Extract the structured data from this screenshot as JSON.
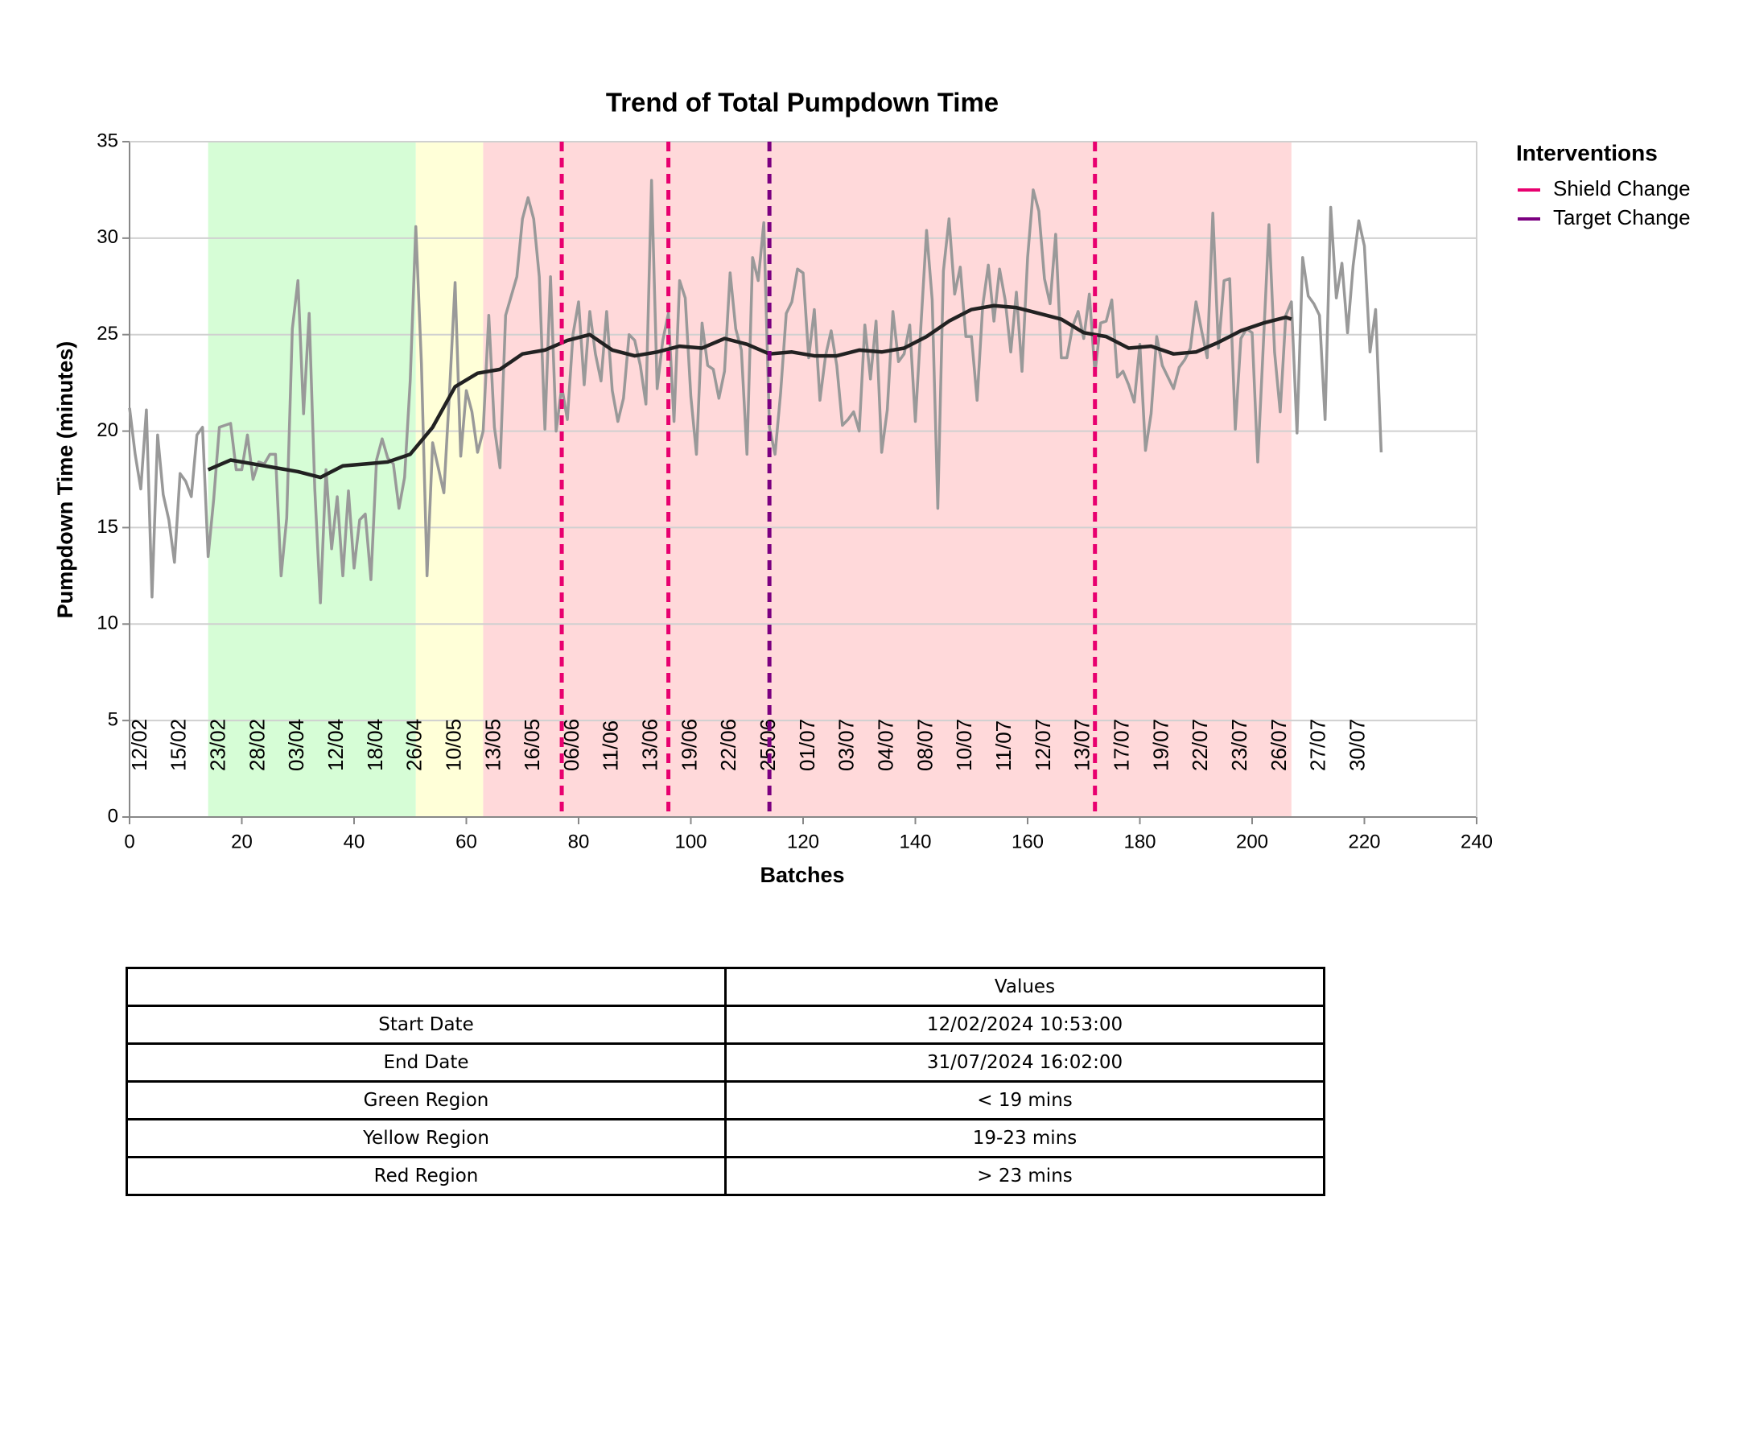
{
  "chart_data": {
    "type": "line",
    "title": "Trend of Total Pumpdown Time",
    "x_label": "Batches",
    "y_label": "Pumpdown Time (minutes)",
    "xlim": [
      0,
      240
    ],
    "xticks": [
      0,
      20,
      40,
      60,
      80,
      100,
      120,
      140,
      160,
      180,
      200,
      220,
      240
    ],
    "ylim": [
      0,
      35
    ],
    "yticks": [
      0,
      5,
      10,
      15,
      20,
      25,
      30,
      35
    ],
    "grid": true,
    "regions": [
      {
        "from": 14,
        "to": 51,
        "color": "#d6fdd6"
      },
      {
        "from": 51,
        "to": 63,
        "color": "#ffffd8"
      },
      {
        "from": 63,
        "to": 207,
        "color": "#ffd9da"
      }
    ],
    "series": [
      {
        "color": "#999999",
        "x": [
          0,
          1,
          2,
          3,
          4,
          5,
          6,
          7,
          8,
          9,
          10,
          11,
          12,
          13,
          14,
          15,
          16,
          17,
          18,
          19,
          20,
          21,
          22,
          23,
          24,
          25,
          26,
          27,
          28,
          29,
          30,
          31,
          32,
          33,
          34,
          35,
          36,
          37,
          38,
          39,
          40,
          41,
          42,
          43,
          44,
          45,
          46,
          47,
          48,
          49,
          50,
          51,
          52,
          53,
          54,
          55,
          56,
          57,
          58,
          59,
          60,
          61,
          62,
          63,
          64,
          65,
          66,
          67,
          68,
          69,
          70,
          71,
          72,
          73,
          74,
          75,
          76,
          77,
          78,
          79,
          80,
          81,
          82,
          83,
          84,
          85,
          86,
          87,
          88,
          89,
          90,
          91,
          92,
          93,
          94,
          95,
          96,
          97,
          98,
          99,
          100,
          101,
          102,
          103,
          104,
          105,
          106,
          107,
          108,
          109,
          110,
          111,
          112,
          113,
          114,
          115,
          116,
          117,
          118,
          119,
          120,
          121,
          122,
          123,
          124,
          125,
          126,
          127,
          128,
          129,
          130,
          131,
          132,
          133,
          134,
          135,
          136,
          137,
          138,
          139,
          140,
          141,
          142,
          143,
          144,
          145,
          146,
          147,
          148,
          149,
          150,
          151,
          152,
          153,
          154,
          155,
          156,
          157,
          158,
          159,
          160,
          161,
          162,
          163,
          164,
          165,
          166,
          167,
          168,
          169,
          170,
          171,
          172,
          173,
          174,
          175,
          176,
          177,
          178,
          179,
          180,
          181,
          182,
          183,
          184,
          185,
          186,
          187,
          188,
          189,
          190,
          191,
          192,
          193,
          194,
          195,
          196,
          197,
          198,
          199,
          200,
          201,
          202,
          203,
          204,
          205,
          206,
          207,
          208,
          209,
          210,
          211,
          212,
          213,
          214,
          215,
          216,
          217,
          218,
          219,
          220,
          221,
          222,
          223
        ],
        "values": [
          21.2,
          18.8,
          17.0,
          21.1,
          11.4,
          19.8,
          16.7,
          15.4,
          13.2,
          17.8,
          17.4,
          16.6,
          19.8,
          20.2,
          13.5,
          16.5,
          20.2,
          20.3,
          20.4,
          18.0,
          18.0,
          19.8,
          17.5,
          18.4,
          18.3,
          18.8,
          18.8,
          12.5,
          15.5,
          25.3,
          27.8,
          20.9,
          26.1,
          17.0,
          11.1,
          18.0,
          13.9,
          16.6,
          12.5,
          16.9,
          12.9,
          15.4,
          15.7,
          12.3,
          18.5,
          19.6,
          18.6,
          18.3,
          16.0,
          17.6,
          22.6,
          30.6,
          23.5,
          12.5,
          19.4,
          18.1,
          16.8,
          22.0,
          27.7,
          18.7,
          22.1,
          21.0,
          18.9,
          20.0,
          26.0,
          20.2,
          18.1,
          26.0,
          27.0,
          28.0,
          31.0,
          32.1,
          31.0,
          28.0,
          20.1,
          28.0,
          20.0,
          22.3,
          20.6,
          25.0,
          26.7,
          22.4,
          26.2,
          24.0,
          22.6,
          26.2,
          22.1,
          20.5,
          21.7,
          25.0,
          24.7,
          23.4,
          21.4,
          33.0,
          22.2,
          24.7,
          26.1,
          20.5,
          27.8,
          26.9,
          21.8,
          18.8,
          25.6,
          23.4,
          23.2,
          21.7,
          23.1,
          28.2,
          25.3,
          24.2,
          18.8,
          29.0,
          27.8,
          30.8,
          20.2,
          18.8,
          22.0,
          26.1,
          26.7,
          28.4,
          28.2,
          23.8,
          26.3,
          21.6,
          23.9,
          25.2,
          23.4,
          20.3,
          20.6,
          21.0,
          20.0,
          25.5,
          22.7,
          25.7,
          18.9,
          21.1,
          26.2,
          23.6,
          24.0,
          25.5,
          20.5,
          25.5,
          30.4,
          26.8,
          16.0,
          28.3,
          31.0,
          27.1,
          28.5,
          24.9,
          24.9,
          21.6,
          26.5,
          28.6,
          25.7,
          28.4,
          26.8,
          24.1,
          27.2,
          23.1,
          29.0,
          32.5,
          31.4,
          27.9,
          26.6,
          30.2,
          23.8,
          23.8,
          25.4,
          26.2,
          24.8,
          27.1,
          23.0,
          25.6,
          25.7,
          26.8,
          22.8,
          23.1,
          22.4,
          21.5,
          24.5,
          19.0,
          20.9,
          24.9,
          23.4,
          22.8,
          22.2,
          23.3,
          23.7,
          24.3,
          26.7,
          25.2,
          23.8,
          31.3,
          24.3,
          27.8,
          27.9,
          20.1,
          24.8,
          25.3,
          25.1,
          18.4,
          24.5,
          30.7,
          24.1,
          21.0,
          26.0,
          26.7,
          19.9,
          29.0,
          27.0,
          26.6,
          26.0,
          20.6,
          31.6,
          26.9,
          28.7,
          25.1,
          28.6,
          30.9,
          29.6,
          24.1,
          26.3,
          18.9
        ]
      },
      {
        "color": "#222222",
        "x": [
          14,
          18,
          22,
          26,
          30,
          34,
          38,
          42,
          46,
          50,
          54,
          58,
          62,
          66,
          70,
          74,
          78,
          82,
          86,
          90,
          94,
          98,
          102,
          106,
          110,
          114,
          118,
          122,
          126,
          130,
          134,
          138,
          142,
          146,
          150,
          154,
          158,
          162,
          166,
          170,
          174,
          178,
          182,
          186,
          190,
          194,
          198,
          202,
          206,
          207
        ],
        "values": [
          18.0,
          18.5,
          18.3,
          18.1,
          17.9,
          17.6,
          18.2,
          18.3,
          18.4,
          18.8,
          20.2,
          22.3,
          23.0,
          23.2,
          24.0,
          24.2,
          24.7,
          25.0,
          24.2,
          23.9,
          24.1,
          24.4,
          24.3,
          24.8,
          24.5,
          24.0,
          24.1,
          23.9,
          23.9,
          24.2,
          24.1,
          24.3,
          24.9,
          25.7,
          26.3,
          26.5,
          26.4,
          26.1,
          25.8,
          25.1,
          24.9,
          24.3,
          24.4,
          24.0,
          24.1,
          24.6,
          25.2,
          25.6,
          25.9,
          25.8
        ]
      }
    ],
    "legend_title": "Interventions",
    "interventions": [
      {
        "name": "Shield Change",
        "color": "#e8006f",
        "x": [
          77,
          96,
          172
        ]
      },
      {
        "name": "Target Change",
        "color": "#7b0080",
        "x": [
          114
        ]
      }
    ],
    "date_labels": {
      "x": [
        2,
        9,
        16,
        23,
        30,
        37,
        44,
        51,
        58,
        65,
        72,
        79,
        86,
        93,
        100,
        107,
        114,
        121,
        128,
        135,
        142,
        149,
        156,
        163,
        170,
        177,
        184,
        191,
        198,
        205,
        212,
        219
      ],
      "labels": [
        "12/02",
        "15/02",
        "23/02",
        "28/02",
        "03/04",
        "12/04",
        "18/04",
        "26/04",
        "10/05",
        "13/05",
        "16/05",
        "06/06",
        "11/06",
        "13/06",
        "19/06",
        "22/06",
        "25/06",
        "01/07",
        "03/07",
        "04/07",
        "08/07",
        "10/07",
        "11/07",
        "12/07",
        "13/07",
        "17/07",
        "19/07",
        "22/07",
        "23/07",
        "26/07",
        "27/07",
        "30/07"
      ]
    }
  },
  "table": {
    "columns": [
      "Values"
    ],
    "rows": [
      [
        "Start Date",
        "12/02/2024 10:53:00"
      ],
      [
        "End Date",
        "31/07/2024 16:02:00"
      ],
      [
        "Green Region",
        "< 19 mins"
      ],
      [
        "Yellow Region",
        "19-23 mins"
      ],
      [
        "Red Region",
        "> 23 mins"
      ]
    ]
  }
}
